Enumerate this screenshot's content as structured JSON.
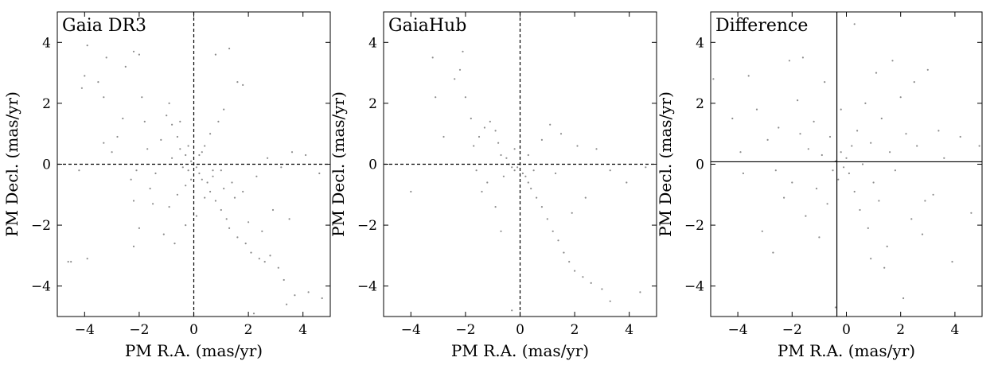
{
  "chart_data": [
    {
      "type": "scatter",
      "title": "Gaia DR3",
      "xlabel": "PM R.A. (mas/yr)",
      "ylabel": "PM Decl. (mas/yr)",
      "xlim": [
        -5,
        5
      ],
      "ylim": [
        -5,
        5
      ],
      "xticks": [
        -4,
        -2,
        0,
        2,
        4
      ],
      "yticks": [
        -4,
        -2,
        0,
        2,
        4
      ],
      "reference_lines": {
        "x": 0,
        "y": 0,
        "style": "dashed"
      },
      "points": [
        [
          -4.6,
          -3.2
        ],
        [
          -4.5,
          -3.2
        ],
        [
          -3.9,
          -3.1
        ],
        [
          -4.2,
          -0.2
        ],
        [
          -4.0,
          2.9
        ],
        [
          -4.1,
          2.5
        ],
        [
          -3.9,
          3.9
        ],
        [
          -3.5,
          2.7
        ],
        [
          -3.3,
          2.2
        ],
        [
          -3.2,
          3.5
        ],
        [
          -3.3,
          0.7
        ],
        [
          -3.0,
          0.4
        ],
        [
          -2.8,
          0.9
        ],
        [
          -2.6,
          1.5
        ],
        [
          -2.5,
          3.2
        ],
        [
          -2.2,
          3.7
        ],
        [
          -2.0,
          3.6
        ],
        [
          -1.9,
          2.2
        ],
        [
          -1.8,
          1.4
        ],
        [
          -1.7,
          0.5
        ],
        [
          -2.1,
          -0.2
        ],
        [
          -2.3,
          -0.5
        ],
        [
          -2.2,
          -1.2
        ],
        [
          -2.0,
          -2.1
        ],
        [
          -2.2,
          -2.7
        ],
        [
          -1.5,
          -1.3
        ],
        [
          -1.6,
          -0.8
        ],
        [
          -1.4,
          -0.3
        ],
        [
          -1.2,
          0.8
        ],
        [
          -1.0,
          1.6
        ],
        [
          -0.9,
          2.0
        ],
        [
          -0.8,
          1.3
        ],
        [
          -0.6,
          0.9
        ],
        [
          -0.5,
          0.5
        ],
        [
          -0.3,
          0.3
        ],
        [
          -0.4,
          -0.1
        ],
        [
          -0.2,
          -0.2
        ],
        [
          -0.1,
          0.1
        ],
        [
          0.1,
          -0.1
        ],
        [
          0.2,
          -0.3
        ],
        [
          0.3,
          -0.5
        ],
        [
          0.5,
          -0.6
        ],
        [
          0.6,
          -0.9
        ],
        [
          0.8,
          -1.2
        ],
        [
          1.0,
          -1.5
        ],
        [
          1.2,
          -1.8
        ],
        [
          1.3,
          -2.1
        ],
        [
          1.6,
          -2.4
        ],
        [
          1.9,
          -2.6
        ],
        [
          2.1,
          -2.9
        ],
        [
          2.4,
          -3.1
        ],
        [
          2.6,
          -3.2
        ],
        [
          2.8,
          -3.0
        ],
        [
          3.1,
          -3.4
        ],
        [
          3.3,
          -3.8
        ],
        [
          3.7,
          -4.3
        ],
        [
          4.2,
          -4.2
        ],
        [
          4.7,
          -4.4
        ],
        [
          3.4,
          -4.6
        ],
        [
          2.2,
          -4.9
        ],
        [
          0.8,
          3.6
        ],
        [
          1.3,
          3.8
        ],
        [
          1.6,
          2.7
        ],
        [
          1.8,
          2.6
        ],
        [
          1.1,
          1.8
        ],
        [
          0.9,
          1.4
        ],
        [
          0.6,
          1.0
        ],
        [
          0.4,
          0.6
        ],
        [
          0.2,
          0.3
        ],
        [
          0.0,
          0.0
        ],
        [
          -0.1,
          -0.5
        ],
        [
          -0.3,
          -0.7
        ],
        [
          -0.6,
          -1.0
        ],
        [
          -0.9,
          -1.4
        ],
        [
          -1.1,
          -2.3
        ],
        [
          -0.7,
          -2.6
        ],
        [
          -0.3,
          -2.0
        ],
        [
          0.1,
          -1.7
        ],
        [
          0.4,
          -1.1
        ],
        [
          0.7,
          -0.4
        ],
        [
          1.0,
          -0.2
        ],
        [
          1.4,
          -0.6
        ],
        [
          1.8,
          -0.9
        ],
        [
          2.3,
          -0.4
        ],
        [
          2.7,
          0.2
        ],
        [
          3.2,
          -0.1
        ],
        [
          3.6,
          0.4
        ],
        [
          4.1,
          0.3
        ],
        [
          4.6,
          -0.3
        ],
        [
          3.5,
          -1.8
        ],
        [
          2.9,
          -1.5
        ],
        [
          2.5,
          -2.2
        ],
        [
          2.0,
          -1.9
        ],
        [
          1.5,
          -1.1
        ],
        [
          1.1,
          -0.8
        ],
        [
          0.7,
          -0.2
        ],
        [
          0.3,
          0.4
        ],
        [
          -0.2,
          0.6
        ],
        [
          -0.5,
          1.4
        ],
        [
          -0.8,
          0.2
        ]
      ]
    },
    {
      "type": "scatter",
      "title": "GaiaHub",
      "xlabel": "PM R.A. (mas/yr)",
      "ylabel": "PM Decl. (mas/yr)",
      "xlim": [
        -5,
        5
      ],
      "ylim": [
        -5,
        5
      ],
      "xticks": [
        -4,
        -2,
        0,
        2,
        4
      ],
      "yticks": [
        -4,
        -2,
        0,
        2,
        4
      ],
      "reference_lines": {
        "x": 0,
        "y": 0,
        "style": "dashed"
      },
      "points": [
        [
          -4.0,
          -0.9
        ],
        [
          -3.2,
          3.5
        ],
        [
          -3.1,
          2.2
        ],
        [
          -2.8,
          0.9
        ],
        [
          -2.4,
          2.8
        ],
        [
          -2.2,
          3.1
        ],
        [
          -2.1,
          3.7
        ],
        [
          -2.0,
          2.2
        ],
        [
          -1.8,
          1.5
        ],
        [
          -1.7,
          0.6
        ],
        [
          -1.6,
          -0.2
        ],
        [
          -1.5,
          0.9
        ],
        [
          -1.3,
          1.2
        ],
        [
          -1.1,
          1.4
        ],
        [
          -0.9,
          1.1
        ],
        [
          -0.8,
          0.7
        ],
        [
          -0.7,
          0.3
        ],
        [
          -0.5,
          0.2
        ],
        [
          -0.4,
          0.0
        ],
        [
          -0.3,
          -0.1
        ],
        [
          -0.2,
          -0.2
        ],
        [
          -0.1,
          -0.1
        ],
        [
          0.0,
          0.0
        ],
        [
          0.1,
          -0.3
        ],
        [
          0.2,
          -0.4
        ],
        [
          0.3,
          -0.6
        ],
        [
          0.4,
          -0.8
        ],
        [
          0.6,
          -1.1
        ],
        [
          0.8,
          -1.4
        ],
        [
          1.0,
          -1.8
        ],
        [
          1.2,
          -2.2
        ],
        [
          1.4,
          -2.5
        ],
        [
          1.6,
          -2.9
        ],
        [
          1.8,
          -3.2
        ],
        [
          2.0,
          -3.5
        ],
        [
          2.3,
          -3.7
        ],
        [
          2.6,
          -3.9
        ],
        [
          3.0,
          -4.1
        ],
        [
          3.3,
          -4.5
        ],
        [
          4.4,
          -4.2
        ],
        [
          -0.3,
          -4.8
        ],
        [
          -0.7,
          -2.2
        ],
        [
          -0.9,
          -1.4
        ],
        [
          -1.2,
          -0.6
        ],
        [
          0.8,
          0.8
        ],
        [
          1.1,
          1.3
        ],
        [
          1.5,
          1.0
        ],
        [
          2.1,
          0.6
        ],
        [
          2.8,
          0.5
        ],
        [
          3.3,
          -0.2
        ],
        [
          3.9,
          -0.6
        ],
        [
          4.6,
          -0.1
        ],
        [
          2.4,
          -1.1
        ],
        [
          1.9,
          -1.6
        ],
        [
          0.5,
          -0.2
        ],
        [
          0.3,
          0.3
        ],
        [
          -0.6,
          -0.4
        ],
        [
          -0.2,
          0.5
        ],
        [
          1.3,
          -0.3
        ],
        [
          -1.4,
          -0.9
        ]
      ]
    },
    {
      "type": "scatter",
      "title": "Difference",
      "xlabel": "PM R.A. (mas/yr)",
      "ylabel": "PM Decl. (mas/yr)",
      "xlim": [
        -5,
        5
      ],
      "ylim": [
        -5,
        5
      ],
      "xticks": [
        -4,
        -2,
        0,
        2,
        4
      ],
      "yticks": [
        -4,
        -2,
        0,
        2,
        4
      ],
      "reference_lines": {
        "x": -0.35,
        "y": 0.08,
        "style": "solid"
      },
      "points": [
        [
          -4.9,
          2.8
        ],
        [
          -4.2,
          1.5
        ],
        [
          -3.9,
          0.4
        ],
        [
          -3.8,
          -0.3
        ],
        [
          -3.6,
          2.9
        ],
        [
          -3.3,
          1.8
        ],
        [
          -3.1,
          -2.2
        ],
        [
          -2.9,
          0.8
        ],
        [
          -2.7,
          -2.9
        ],
        [
          -2.5,
          1.2
        ],
        [
          -2.3,
          -1.1
        ],
        [
          -2.1,
          3.4
        ],
        [
          -2.0,
          -0.6
        ],
        [
          -1.8,
          2.1
        ],
        [
          -1.6,
          3.5
        ],
        [
          -1.5,
          -1.7
        ],
        [
          -1.4,
          0.5
        ],
        [
          -1.2,
          1.4
        ],
        [
          -1.1,
          -0.8
        ],
        [
          -1.0,
          -2.4
        ],
        [
          -0.9,
          0.3
        ],
        [
          -0.8,
          2.7
        ],
        [
          -0.7,
          -1.3
        ],
        [
          -0.6,
          0.9
        ],
        [
          -0.5,
          -0.2
        ],
        [
          -0.4,
          0.1
        ],
        [
          -0.3,
          -0.5
        ],
        [
          -0.2,
          0.4
        ],
        [
          -0.1,
          -0.1
        ],
        [
          0.0,
          0.2
        ],
        [
          0.1,
          -0.3
        ],
        [
          0.2,
          0.6
        ],
        [
          0.3,
          -0.9
        ],
        [
          0.4,
          1.1
        ],
        [
          0.5,
          -1.5
        ],
        [
          0.6,
          0.0
        ],
        [
          0.7,
          2.0
        ],
        [
          0.8,
          -2.1
        ],
        [
          0.9,
          0.7
        ],
        [
          1.0,
          -0.6
        ],
        [
          1.1,
          3.0
        ],
        [
          1.2,
          -1.2
        ],
        [
          1.3,
          1.5
        ],
        [
          1.4,
          -3.4
        ],
        [
          1.5,
          -2.7
        ],
        [
          1.6,
          0.4
        ],
        [
          1.8,
          -0.2
        ],
        [
          2.0,
          2.2
        ],
        [
          2.1,
          -4.4
        ],
        [
          2.2,
          1.0
        ],
        [
          2.4,
          -1.8
        ],
        [
          2.5,
          2.7
        ],
        [
          2.6,
          0.6
        ],
        [
          2.8,
          -2.3
        ],
        [
          3.0,
          3.1
        ],
        [
          3.2,
          -1.0
        ],
        [
          3.4,
          1.1
        ],
        [
          3.6,
          0.2
        ],
        [
          3.9,
          -3.2
        ],
        [
          4.2,
          0.9
        ],
        [
          4.6,
          -1.6
        ],
        [
          4.9,
          0.6
        ],
        [
          -0.4,
          -4.7
        ],
        [
          0.3,
          4.6
        ],
        [
          -1.7,
          1.0
        ],
        [
          -2.6,
          -0.2
        ],
        [
          1.7,
          3.4
        ],
        [
          0.9,
          -3.1
        ],
        [
          -0.2,
          1.8
        ],
        [
          2.9,
          -1.2
        ]
      ]
    }
  ]
}
